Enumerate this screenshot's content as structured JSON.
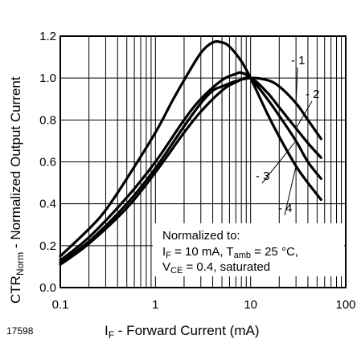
{
  "figure_number": "17598",
  "chart_data": {
    "type": "line",
    "x_scale": "log",
    "xlim": [
      0.1,
      100
    ],
    "ylim": [
      0.0,
      1.2
    ],
    "grid": true,
    "x_tick_labels": [
      "0.1",
      "1",
      "10",
      "100"
    ],
    "y_tick_labels": [
      "0.0",
      "0.2",
      "0.4",
      "0.6",
      "0.8",
      "1.0",
      "1.2"
    ],
    "xlabel": {
      "main": "I",
      "sub": "F",
      "rest": " - Forward Current (mA)"
    },
    "ylabel": {
      "main": "CTR",
      "sub": "Norm",
      "rest": " - Normalized Output Current"
    },
    "annotation": {
      "line1": "Normalized to:",
      "line2": {
        "a": "I",
        "a_sub": "F",
        "b": " = 10 mA, T",
        "b_sub": "amb",
        "c": " = 25 °C,"
      },
      "line3": {
        "a": "V",
        "a_sub": "CE",
        "b": " = 0.4, saturated"
      }
    },
    "series": [
      {
        "label": "- 1",
        "x": [
          0.1,
          0.2,
          0.5,
          1,
          2,
          3,
          4,
          5,
          7,
          10,
          15,
          20,
          30,
          40,
          55
        ],
        "y": [
          0.12,
          0.22,
          0.4,
          0.57,
          0.77,
          0.88,
          0.94,
          0.96,
          0.985,
          1.0,
          0.99,
          0.96,
          0.88,
          0.8,
          0.71
        ]
      },
      {
        "label": "- 2",
        "x": [
          0.1,
          0.2,
          0.5,
          1,
          2,
          3,
          5,
          7,
          10,
          15,
          20,
          30,
          40,
          55
        ],
        "y": [
          0.11,
          0.21,
          0.38,
          0.55,
          0.74,
          0.84,
          0.94,
          0.98,
          1.0,
          0.93,
          0.86,
          0.76,
          0.69,
          0.62
        ]
      },
      {
        "label": "- 3",
        "x": [
          0.1,
          0.2,
          0.5,
          1,
          2,
          3,
          5,
          7,
          8,
          10,
          15,
          20,
          30,
          40,
          55
        ],
        "y": [
          0.13,
          0.24,
          0.43,
          0.6,
          0.8,
          0.9,
          0.99,
          1.02,
          1.025,
          1.0,
          0.9,
          0.82,
          0.7,
          0.6,
          0.52
        ]
      },
      {
        "label": "- 4",
        "x": [
          0.1,
          0.2,
          0.3,
          0.5,
          1,
          1.5,
          2,
          3,
          4,
          5,
          6,
          8,
          10,
          15,
          20,
          30,
          40,
          55
        ],
        "y": [
          0.15,
          0.28,
          0.37,
          0.52,
          0.74,
          0.89,
          0.99,
          1.12,
          1.17,
          1.17,
          1.15,
          1.08,
          1.0,
          0.83,
          0.72,
          0.58,
          0.5,
          0.42
        ]
      }
    ]
  }
}
